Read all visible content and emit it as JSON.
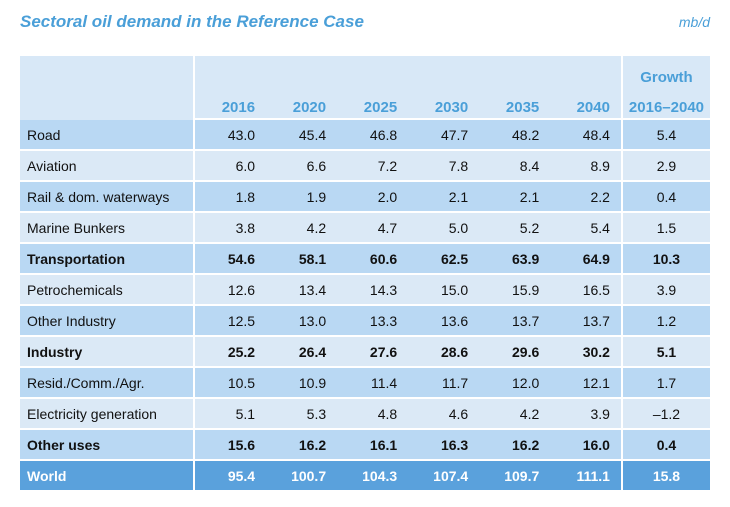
{
  "title": "Sectoral oil demand in the Reference Case",
  "unit": "mb/d",
  "table": {
    "years": [
      "2016",
      "2020",
      "2025",
      "2030",
      "2035",
      "2040"
    ],
    "growth_header_top": "Growth",
    "growth_header_bottom": "2016–2040",
    "rows": [
      {
        "label": "Road",
        "values": [
          "43.0",
          "45.4",
          "46.8",
          "47.7",
          "48.2",
          "48.4"
        ],
        "growth": "5.4"
      },
      {
        "label": "Aviation",
        "values": [
          "6.0",
          "6.6",
          "7.2",
          "7.8",
          "8.4",
          "8.9"
        ],
        "growth": "2.9"
      },
      {
        "label": "Rail & dom. waterways",
        "values": [
          "1.8",
          "1.9",
          "2.0",
          "2.1",
          "2.1",
          "2.2"
        ],
        "growth": "0.4"
      },
      {
        "label": "Marine Bunkers",
        "values": [
          "3.8",
          "4.2",
          "4.7",
          "5.0",
          "5.2",
          "5.4"
        ],
        "growth": "1.5"
      },
      {
        "label": "Transportation",
        "values": [
          "54.6",
          "58.1",
          "60.6",
          "62.5",
          "63.9",
          "64.9"
        ],
        "growth": "10.3"
      },
      {
        "label": "Petrochemicals",
        "values": [
          "12.6",
          "13.4",
          "14.3",
          "15.0",
          "15.9",
          "16.5"
        ],
        "growth": "3.9"
      },
      {
        "label": "Other Industry",
        "values": [
          "12.5",
          "13.0",
          "13.3",
          "13.6",
          "13.7",
          "13.7"
        ],
        "growth": "1.2"
      },
      {
        "label": "Industry",
        "values": [
          "25.2",
          "26.4",
          "27.6",
          "28.6",
          "29.6",
          "30.2"
        ],
        "growth": "5.1"
      },
      {
        "label": "Resid./Comm./Agr.",
        "values": [
          "10.5",
          "10.9",
          "11.4",
          "11.7",
          "12.0",
          "12.1"
        ],
        "growth": "1.7"
      },
      {
        "label": "Electricity generation",
        "values": [
          "5.1",
          "5.3",
          "4.8",
          "4.6",
          "4.2",
          "3.9"
        ],
        "growth": "–1.2"
      },
      {
        "label": "Other uses",
        "values": [
          "15.6",
          "16.2",
          "16.1",
          "16.3",
          "16.2",
          "16.0"
        ],
        "growth": "0.4"
      },
      {
        "label": "World",
        "values": [
          "95.4",
          "100.7",
          "104.3",
          "107.4",
          "109.7",
          "111.1"
        ],
        "growth": "15.8"
      }
    ]
  }
}
